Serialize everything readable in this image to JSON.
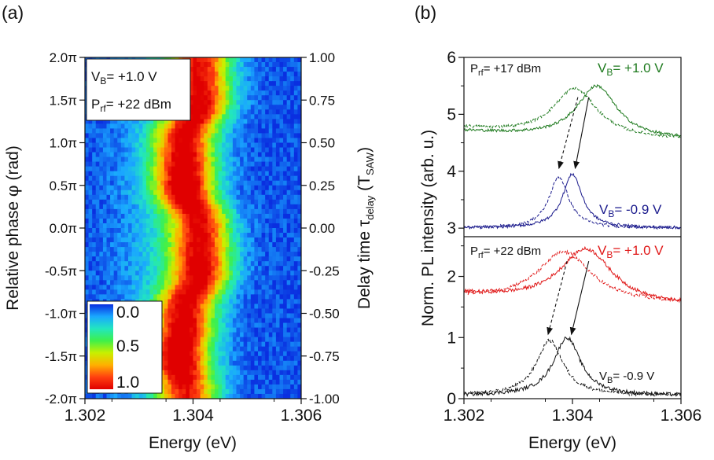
{
  "panel_labels": [
    "(a)",
    "(b)"
  ],
  "chart_data": [
    {
      "type": "heatmap",
      "panel": "(a)",
      "title": "",
      "xlabel": "Energy (eV)",
      "ylabel_left": "Relative phase φ (rad)",
      "ylabel_right": "Delay time τ_delay (T_SAW)",
      "ylabel_left_parts": [
        "Relative phase ",
        "φ",
        " (rad)"
      ],
      "ylabel_right_parts": [
        "Delay time ",
        "τ",
        "delay",
        " (T",
        "SAW",
        ")"
      ],
      "xlim": [
        1.302,
        1.306
      ],
      "ylim_phase_pi": [
        -2.0,
        2.0
      ],
      "ylim_delay": [
        -1.0,
        1.0
      ],
      "x_ticks": [
        "1.302",
        "1.304",
        "1.306"
      ],
      "x_tick_values": [
        1.302,
        1.304,
        1.306
      ],
      "y_left_ticks": [
        "2.0π",
        "1.5π",
        "1.0π",
        "0.5π",
        "0.0π",
        "-0.5π",
        "-1.0π",
        "-1.5π",
        "-2.0π"
      ],
      "y_left_tick_values_pi": [
        2.0,
        1.5,
        1.0,
        0.5,
        0.0,
        -0.5,
        -1.0,
        -1.5,
        -2.0
      ],
      "y_right_ticks": [
        "1.00",
        "0.75",
        "0.50",
        "0.25",
        "0.00",
        "-0.25",
        "-0.50",
        "-0.75",
        "-1.00"
      ],
      "y_right_tick_values": [
        1.0,
        0.75,
        0.5,
        0.25,
        0.0,
        -0.25,
        -0.5,
        -0.75,
        -1.0
      ],
      "colorbar": {
        "ticks": [
          "0.0",
          "0.5",
          "1.0"
        ],
        "tick_values": [
          0.0,
          0.5,
          1.0
        ],
        "colors": [
          "#0a2fe0",
          "#1aa7ff",
          "#22e6c0",
          "#3ef04a",
          "#c8f000",
          "#ffb000",
          "#ff4010",
          "#e00000"
        ]
      },
      "annotation": {
        "line1_main": "V",
        "line1_sub": "B",
        "line1_rest": "= +1.0 V",
        "line2_main": "P",
        "line2_sub": "rf",
        "line2_rest": "= +22 dBm"
      },
      "peak_profile": [
        {
          "phase_pi": -2.0,
          "energy": 1.3039,
          "intensity": 0.75
        },
        {
          "phase_pi": -1.5,
          "energy": 1.30375,
          "intensity": 0.95
        },
        {
          "phase_pi": -1.0,
          "energy": 1.30385,
          "intensity": 0.85
        },
        {
          "phase_pi": -0.5,
          "energy": 1.30415,
          "intensity": 0.9
        },
        {
          "phase_pi": 0.0,
          "energy": 1.30415,
          "intensity": 0.85
        },
        {
          "phase_pi": 0.5,
          "energy": 1.30385,
          "intensity": 0.95
        },
        {
          "phase_pi": 1.0,
          "energy": 1.30385,
          "intensity": 0.85
        },
        {
          "phase_pi": 1.5,
          "energy": 1.30415,
          "intensity": 0.88
        },
        {
          "phase_pi": 2.0,
          "energy": 1.30415,
          "intensity": 0.8
        }
      ]
    },
    {
      "type": "line",
      "panel": "(b)",
      "title": "",
      "xlabel": "Energy (eV)",
      "ylabel": "Norm. PL intensity (arb. u.)",
      "xlim": [
        1.302,
        1.306
      ],
      "x_ticks": [
        "1.302",
        "1.304",
        "1.306"
      ],
      "x_tick_values": [
        1.302,
        1.304,
        1.306
      ],
      "top": {
        "ylim": [
          2.85,
          6.0
        ],
        "y_ticks": [
          "3",
          "4",
          "5",
          "6"
        ],
        "y_tick_values": [
          3,
          4,
          5,
          6
        ],
        "label_p": {
          "main": "P",
          "sub": "rf",
          "rest": "= +17 dBm"
        },
        "label_vb_high": {
          "main": "V",
          "sub": "B",
          "rest": "= +1.0 V"
        },
        "label_vb_low": {
          "main": "V",
          "sub": "B",
          "rest": "= -0.9 V"
        },
        "series": [
          {
            "name": "VB = +1.0 V (solid)",
            "color": "#1e7a1e",
            "dash": "solid",
            "baseline": 4.55,
            "left_offset": 0.15,
            "peak": 5.5,
            "center": 1.30445,
            "width": 0.00045
          },
          {
            "name": "VB = +1.0 V (dashed)",
            "color": "#1e7a1e",
            "dash": "dashed",
            "baseline": 4.55,
            "left_offset": 0.2,
            "peak": 5.45,
            "center": 1.30405,
            "width": 0.0005
          },
          {
            "name": "VB = -0.9 V (solid)",
            "color": "#1a1a8c",
            "dash": "solid",
            "baseline": 3.0,
            "left_offset": 0.0,
            "peak": 3.95,
            "center": 1.304,
            "width": 0.00022
          },
          {
            "name": "VB = -0.9 V (dashed)",
            "color": "#1a1a8c",
            "dash": "dashed",
            "baseline": 3.0,
            "left_offset": 0.0,
            "peak": 3.9,
            "center": 1.30375,
            "width": 0.00022
          }
        ],
        "arrows": [
          {
            "style": "solid",
            "from": [
              1.3043,
              5.3
            ],
            "to": [
              1.30405,
              4.05
            ]
          },
          {
            "style": "dashed",
            "from": [
              1.3041,
              5.3
            ],
            "to": [
              1.30375,
              4.05
            ]
          }
        ]
      },
      "bottom": {
        "ylim": [
          0.0,
          2.65
        ],
        "y_ticks": [
          "0",
          "1",
          "2"
        ],
        "y_tick_values": [
          0,
          1,
          2
        ],
        "label_p": {
          "main": "P",
          "sub": "rf",
          "rest": "= +22 dBm"
        },
        "label_vb_high": {
          "main": "V",
          "sub": "B",
          "rest": "= +1.0 V"
        },
        "label_vb_low": {
          "main": "V",
          "sub": "B",
          "rest": "= -0.9 V"
        },
        "series": [
          {
            "name": "VB = +1.0 V (solid)",
            "color": "#e01818",
            "dash": "solid",
            "baseline": 1.5,
            "left_offset": 0.2,
            "peak": 2.45,
            "center": 1.30425,
            "width": 0.0006
          },
          {
            "name": "VB = +1.0 V (dashed)",
            "color": "#e01818",
            "dash": "dashed",
            "baseline": 1.55,
            "left_offset": 0.1,
            "peak": 2.4,
            "center": 1.30385,
            "width": 0.0006
          },
          {
            "name": "VB = -0.9 V (solid)",
            "color": "#111111",
            "dash": "solid",
            "baseline": 0.05,
            "left_offset": 0.0,
            "peak": 1.0,
            "center": 1.3039,
            "width": 0.0003
          },
          {
            "name": "VB = -0.9 V (dashed)",
            "color": "#111111",
            "dash": "dashed",
            "baseline": 0.05,
            "left_offset": 0.0,
            "peak": 0.95,
            "center": 1.30358,
            "width": 0.0003
          }
        ],
        "arrows": [
          {
            "style": "solid",
            "from": [
              1.3043,
              2.25
            ],
            "to": [
              1.30398,
              1.05
            ]
          },
          {
            "style": "dashed",
            "from": [
              1.3039,
              2.25
            ],
            "to": [
              1.30355,
              1.05
            ]
          }
        ]
      }
    }
  ]
}
